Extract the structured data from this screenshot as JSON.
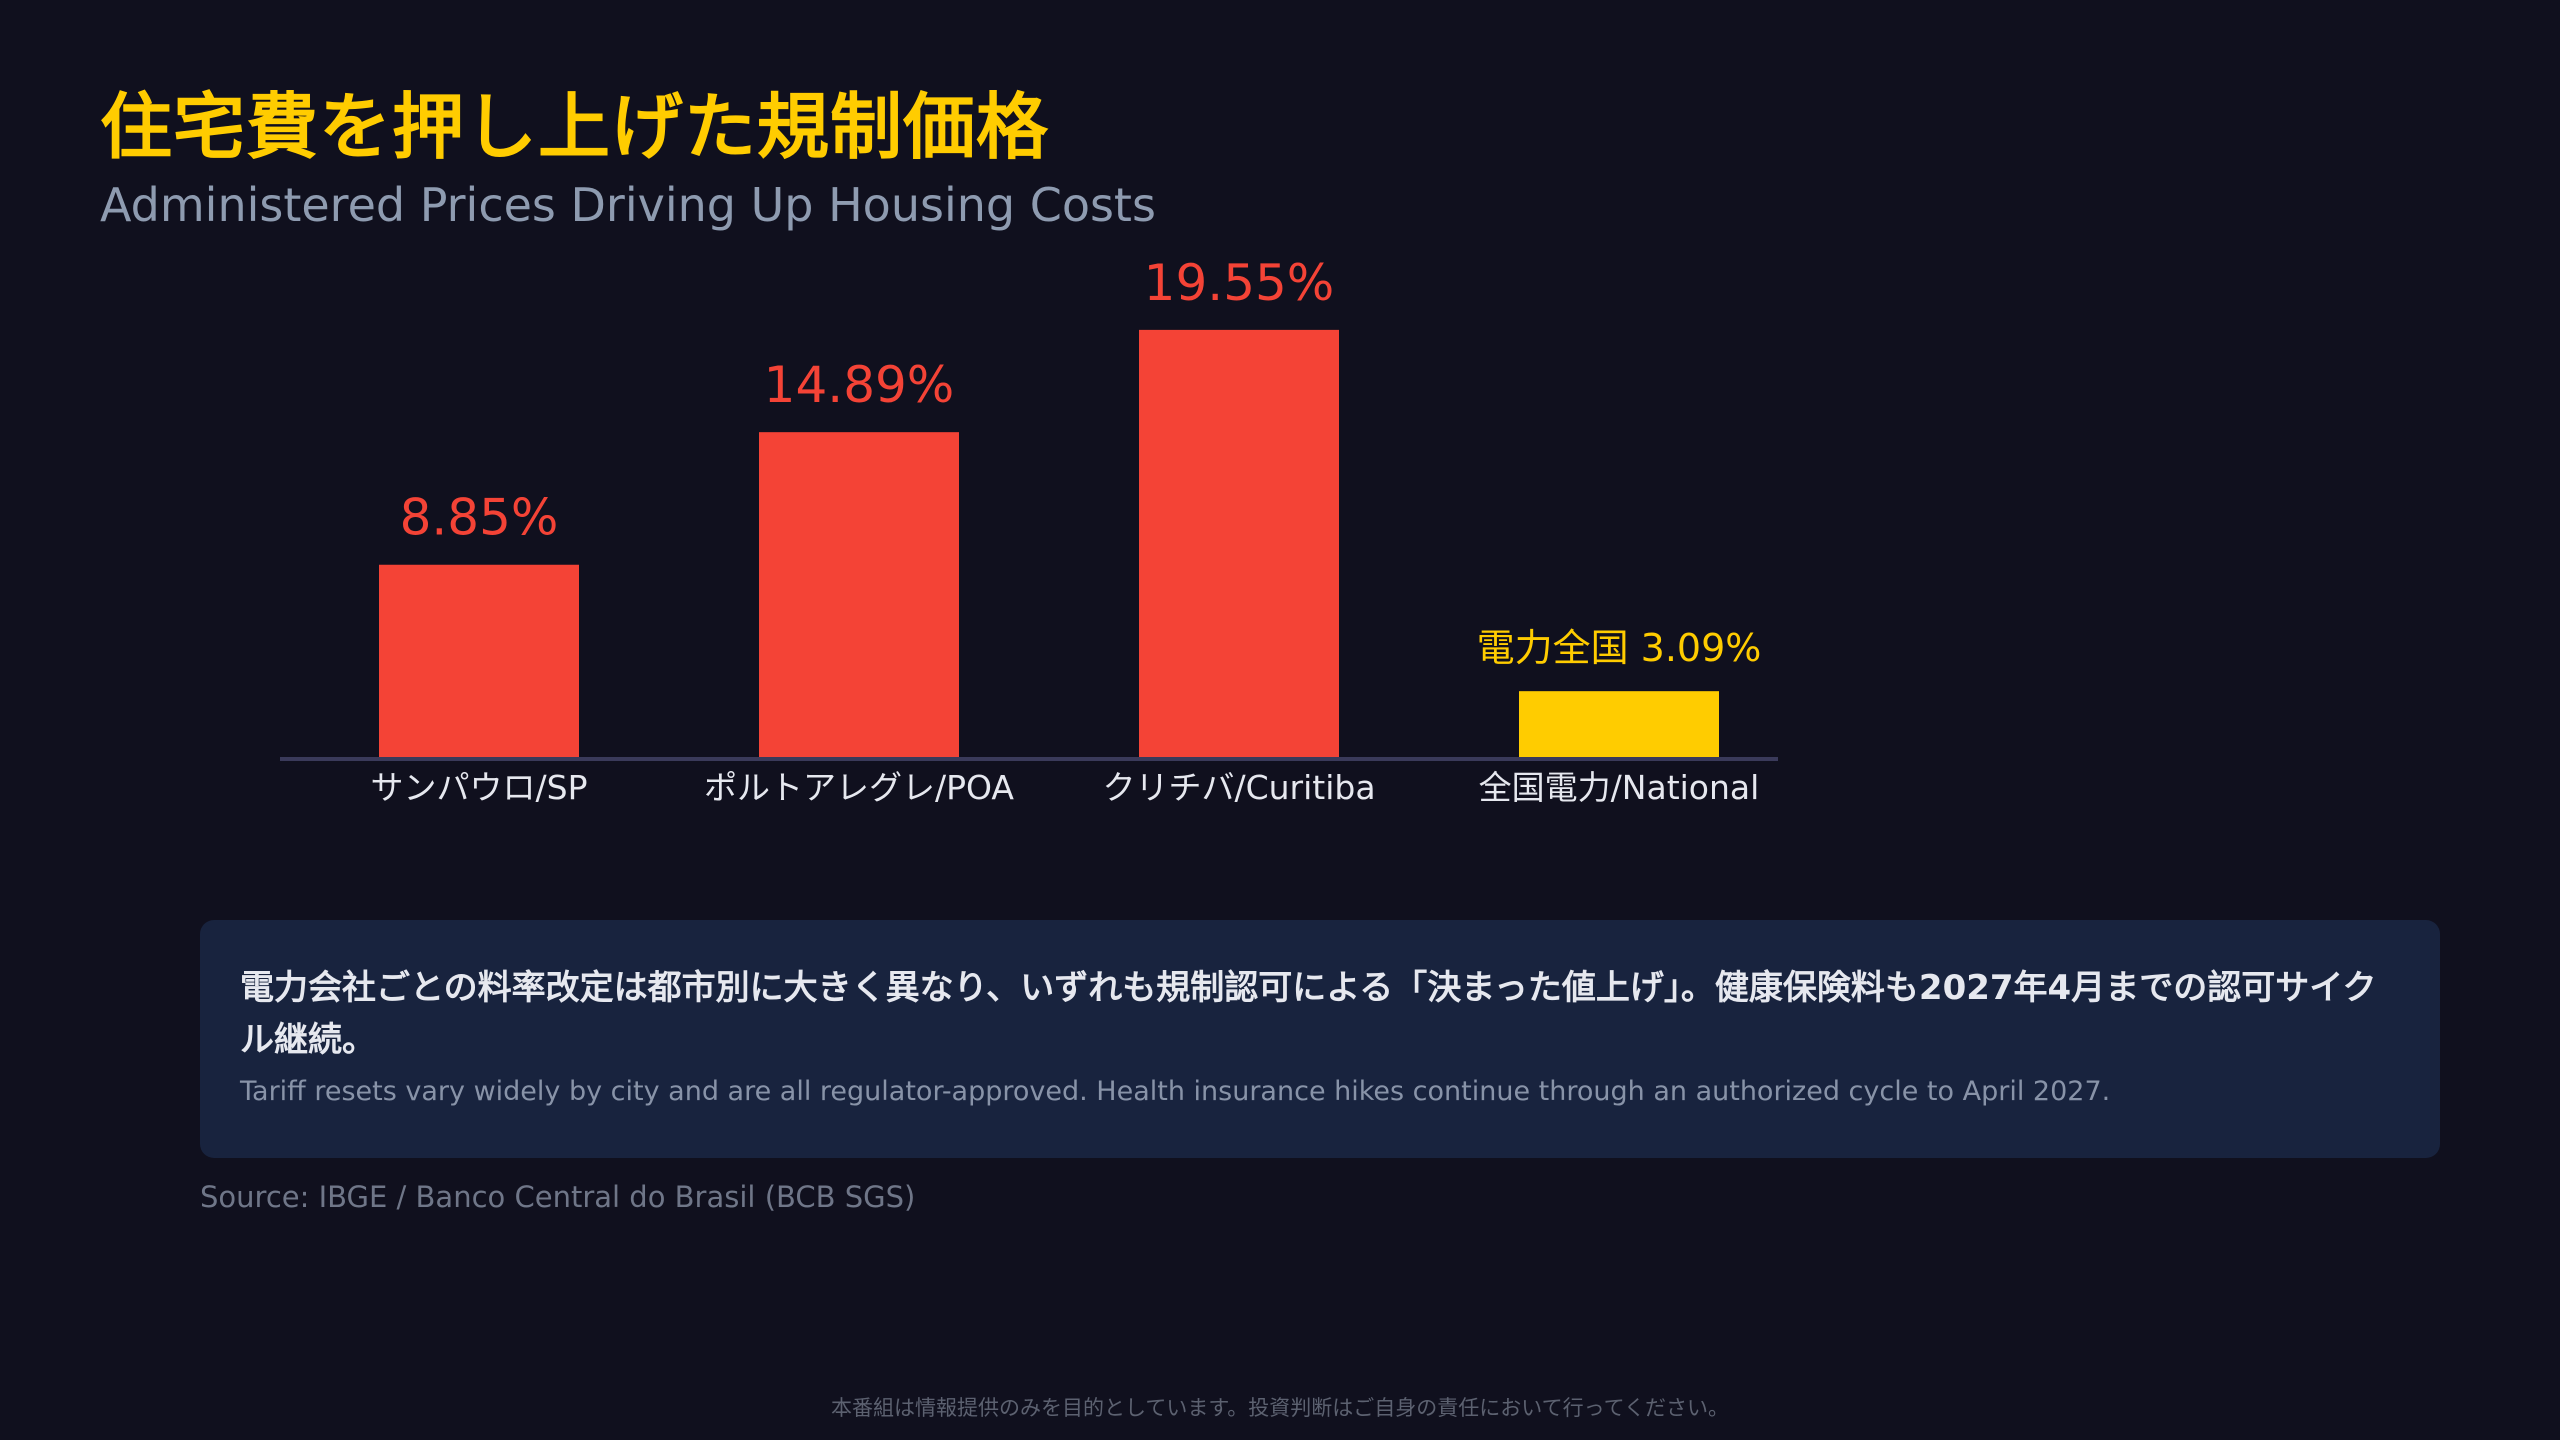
{
  "title": "住宅費を押し上げた規制価格",
  "subtitle": "Administered Prices Driving Up Housing Costs",
  "colors": {
    "background": "#10101e",
    "bar_city": "#f44336",
    "bar_national": "#ffcc00",
    "axis": "#3a3a5a",
    "category_label": "#e6e8ef",
    "note_background": "#18233e"
  },
  "chart_data": {
    "type": "bar",
    "categories": [
      "サンパウロ/SP",
      "ポルトアレグレ/POA",
      "クリチバ/Curitiba",
      "全国電力/National"
    ],
    "values": [
      8.85,
      14.89,
      19.55,
      3.09
    ],
    "data_labels": [
      "8.85%",
      "14.89%",
      "19.55%",
      "電力全国 3.09%"
    ],
    "bar_colors": [
      "#f44336",
      "#f44336",
      "#f44336",
      "#ffcc00"
    ],
    "title": "",
    "xlabel": "",
    "ylabel": "",
    "ylim": [
      0,
      20
    ],
    "grid": false
  },
  "note": {
    "jp": "電力会社ごとの料率改定は都市別に大きく異なり、いずれも規制認可による「決まった値上げ」。健康保険料も2027年4月までの認可サイクル継続。",
    "en": "Tariff resets vary widely by city and are all regulator-approved. Health insurance hikes continue through an authorized cycle to April 2027."
  },
  "source": "Source: IBGE / Banco Central do Brasil (BCB SGS)",
  "disclaimer": "本番組は情報提供のみを目的としています。投資判断はご自身の責任において行ってください。"
}
